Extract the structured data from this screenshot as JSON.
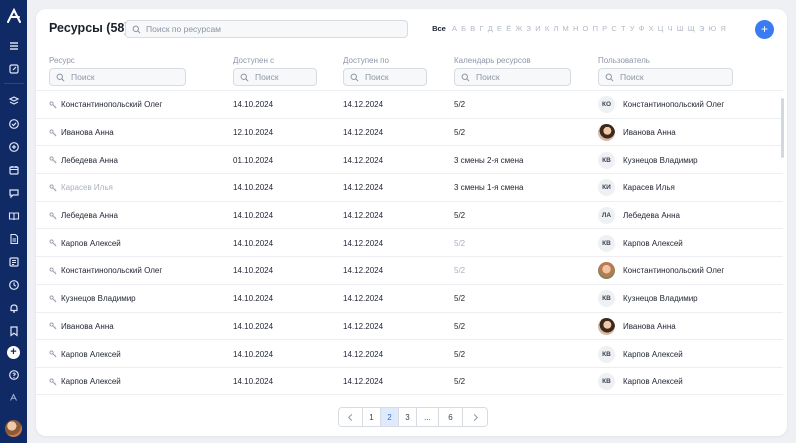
{
  "sidebar": {
    "icons": [
      "logo-icon",
      "menu-icon",
      "edit-box-icon",
      "layers-icon",
      "check-circle-icon",
      "plus-circle-icon",
      "calendar-icon",
      "chat-icon",
      "book-icon",
      "document-icon",
      "newspaper-icon",
      "clock-icon",
      "bell-icon",
      "bookmark-icon",
      "add-icon",
      "help-icon",
      "small-logo-icon",
      "user-avatar"
    ]
  },
  "header": {
    "title": "Ресурсы (58)",
    "search_placeholder": "Поиск по ресурсам",
    "add_label": "+",
    "alphabet_all": "Все",
    "alphabet": [
      "А",
      "Б",
      "В",
      "Г",
      "Д",
      "Е",
      "Ё",
      "Ж",
      "З",
      "И",
      "К",
      "Л",
      "М",
      "Н",
      "О",
      "П",
      "Р",
      "С",
      "Т",
      "У",
      "Ф",
      "Х",
      "Ц",
      "Ч",
      "Ш",
      "Щ",
      "Э",
      "Ю",
      "Я"
    ]
  },
  "columns": {
    "resource": {
      "label": "Ресурс",
      "placeholder": "Поиск"
    },
    "from": {
      "label": "Доступен с",
      "placeholder": "Поиск"
    },
    "to": {
      "label": "Доступен по",
      "placeholder": "Поиск"
    },
    "calendar": {
      "label": "Календарь ресурсов",
      "placeholder": "Поиск"
    },
    "user": {
      "label": "Пользователь",
      "placeholder": "Поиск"
    }
  },
  "rows": [
    {
      "resource": "Константинопольский Олег",
      "from": "14.10.2024",
      "to": "14.12.2024",
      "calendar": "5/2",
      "avatar": "КО",
      "user": "Константинопольский Олег"
    },
    {
      "resource": "Иванова Анна",
      "from": "12.10.2024",
      "to": "14.12.2024",
      "calendar": "5/2",
      "avatar": "",
      "user": "Иванова Анна"
    },
    {
      "resource": "Лебедева Анна",
      "from": "01.10.2024",
      "to": "14.12.2024",
      "calendar": "3 смены 2-я смена",
      "avatar": "КВ",
      "user": "Кузнецов Владимир"
    },
    {
      "resource": "Карасев Илья",
      "from": "14.10.2024",
      "to": "14.12.2024",
      "calendar": "3 смены 1-я смена",
      "avatar": "КИ",
      "user": "Карасев Илья"
    },
    {
      "resource": "Лебедева Анна",
      "from": "14.10.2024",
      "to": "14.12.2024",
      "calendar": "5/2",
      "avatar": "ЛА",
      "user": "Лебедева Анна"
    },
    {
      "resource": "Карпов Алексей",
      "from": "14.10.2024",
      "to": "14.12.2024",
      "calendar": "5/2",
      "avatar": "КВ",
      "user": "Карпов Алексей"
    },
    {
      "resource": "Константинопольский Олег",
      "from": "14.10.2024",
      "to": "14.12.2024",
      "calendar": "5/2",
      "avatar": "",
      "user": "Константинопольский Олег"
    },
    {
      "resource": "Кузнецов Владимир",
      "from": "14.10.2024",
      "to": "14.12.2024",
      "calendar": "5/2",
      "avatar": "КВ",
      "user": "Кузнецов Владимир"
    },
    {
      "resource": "Иванова Анна",
      "from": "14.10.2024",
      "to": "14.12.2024",
      "calendar": "5/2",
      "avatar": "",
      "user": "Иванова Анна"
    },
    {
      "resource": "Карпов Алексей",
      "from": "14.10.2024",
      "to": "14.12.2024",
      "calendar": "5/2",
      "avatar": "КВ",
      "user": "Карпов Алексей"
    },
    {
      "resource": "Карпов Алексей",
      "from": "14.10.2024",
      "to": "14.12.2024",
      "calendar": "5/2",
      "avatar": "КВ",
      "user": "Карпов Алексей"
    }
  ],
  "pagination": {
    "pages": [
      "1",
      "2",
      "3",
      "...",
      "6"
    ],
    "current": "2"
  },
  "colors": {
    "accent": "#3b7bf2",
    "sidebar": "#102a66"
  }
}
